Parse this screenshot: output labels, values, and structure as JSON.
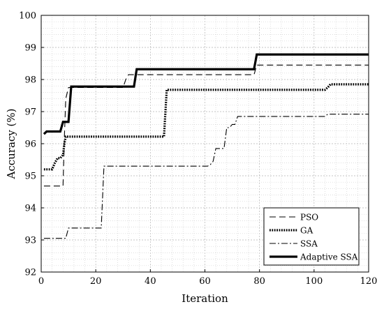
{
  "chart_data": {
    "type": "line",
    "title": "",
    "xlabel": "Iteration",
    "ylabel": "Accuracy (%)",
    "xlim": [
      0,
      120
    ],
    "ylim": [
      92,
      100
    ],
    "xticks": [
      0,
      20,
      40,
      60,
      80,
      100,
      120
    ],
    "yticks": [
      92,
      93,
      94,
      95,
      96,
      97,
      98,
      99,
      100
    ],
    "xtick_labels": [
      "0",
      "20",
      "40",
      "60",
      "80",
      "100",
      "120"
    ],
    "ytick_labels": [
      "92",
      "93",
      "94",
      "95",
      "96",
      "97",
      "98",
      "99",
      "100"
    ],
    "grid": true,
    "legend_position": "bottom-right",
    "series": [
      {
        "name": "PSO",
        "style": "dashed",
        "x": [
          1,
          8,
          8.5,
          9,
          10,
          30,
          31,
          32,
          78,
          79,
          120
        ],
        "y": [
          94.68,
          94.68,
          96.2,
          97.4,
          97.75,
          97.75,
          98.0,
          98.15,
          98.15,
          98.45,
          98.45
        ]
      },
      {
        "name": "GA",
        "style": "dotted",
        "x": [
          1,
          4,
          5,
          6,
          7,
          8,
          8.5,
          9,
          45,
          46,
          104,
          105,
          106,
          120
        ],
        "y": [
          95.2,
          95.2,
          95.4,
          95.55,
          95.55,
          95.65,
          96.0,
          96.22,
          96.22,
          97.68,
          97.68,
          97.75,
          97.85,
          97.85
        ]
      },
      {
        "name": "SSA",
        "style": "dashdot",
        "x": [
          1,
          9,
          10,
          22,
          23,
          61,
          62,
          63,
          64,
          65,
          66,
          67,
          68,
          69,
          70,
          71,
          72,
          73,
          104,
          105,
          120
        ],
        "y": [
          93.05,
          93.05,
          93.37,
          93.37,
          95.3,
          95.3,
          95.35,
          95.45,
          95.85,
          95.85,
          95.85,
          95.85,
          96.5,
          96.5,
          96.6,
          96.6,
          96.85,
          96.85,
          96.85,
          96.92,
          96.92
        ]
      },
      {
        "name": "Adaptive SSA",
        "style": "solid-thick",
        "x": [
          1,
          2,
          7,
          8,
          10,
          11,
          34,
          35,
          78,
          79,
          120
        ],
        "y": [
          96.3,
          96.38,
          96.38,
          96.68,
          96.68,
          97.78,
          97.78,
          98.32,
          98.32,
          98.78,
          98.78
        ]
      }
    ]
  }
}
